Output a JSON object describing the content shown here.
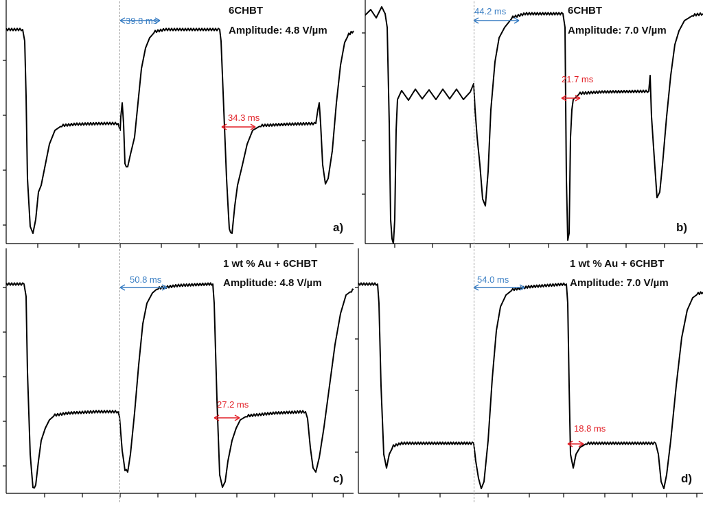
{
  "colors": {
    "rise": "#3b7fc4",
    "fall": "#e21f26",
    "trace": "#000000",
    "divider": "#9e9e9e"
  },
  "chart_data": [
    {
      "type": "line",
      "panel_label": "a)",
      "title": "6CHBT",
      "subtitle": "Amplitude: 4.8 V/µm",
      "xlabel": "",
      "ylabel": "",
      "annotations": [
        {
          "label": "39.8 ms",
          "kind": "rise",
          "value_ms": 39.8
        },
        {
          "label": "34.3 ms",
          "kind": "fall",
          "value_ms": 34.3
        }
      ]
    },
    {
      "type": "line",
      "panel_label": "b)",
      "title": "6CHBT",
      "subtitle": "Amplitude: 7.0 V/µm",
      "xlabel": "",
      "ylabel": "",
      "annotations": [
        {
          "label": "44.2 ms",
          "kind": "rise",
          "value_ms": 44.2
        },
        {
          "label": "21.7 ms",
          "kind": "fall",
          "value_ms": 21.7
        }
      ]
    },
    {
      "type": "line",
      "panel_label": "c)",
      "title": "1 wt % Au + 6CHBT",
      "subtitle": "Amplitude: 4.8 V/µm",
      "xlabel": "",
      "ylabel": "",
      "annotations": [
        {
          "label": "50.8 ms",
          "kind": "rise",
          "value_ms": 50.8
        },
        {
          "label": "27.2 ms",
          "kind": "fall",
          "value_ms": 27.2
        }
      ]
    },
    {
      "type": "line",
      "panel_label": "d)",
      "title": "1 wt % Au + 6CHBT",
      "subtitle": "Amplitude: 7.0 V/µm",
      "xlabel": "",
      "ylabel": "",
      "annotations": [
        {
          "label": "54.0 ms",
          "kind": "rise",
          "value_ms": 54.0
        },
        {
          "label": "18.8 ms",
          "kind": "fall",
          "value_ms": 18.8
        }
      ]
    }
  ]
}
